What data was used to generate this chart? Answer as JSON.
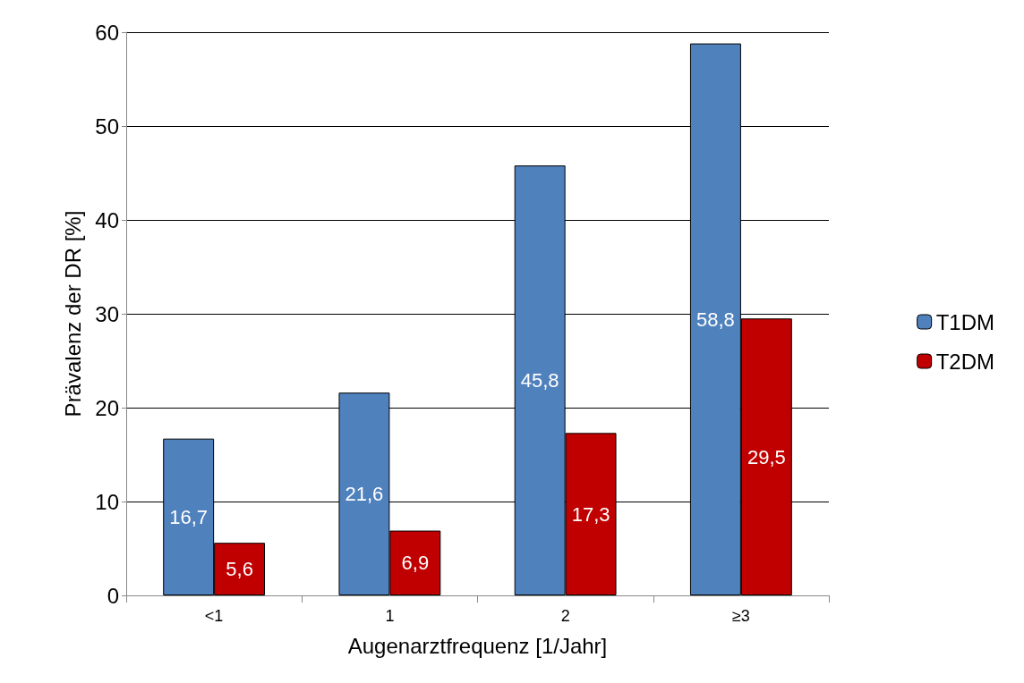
{
  "chart_data": {
    "type": "bar",
    "xlabel": "Augenarztfrequenz [1/Jahr]",
    "ylabel": "Prävalenz der DR [%]",
    "categories": [
      "<1",
      "1",
      "2",
      "≥3"
    ],
    "series": [
      {
        "name": "T1DM",
        "color": "#4f81bd",
        "values": [
          16.7,
          21.6,
          45.8,
          58.8
        ],
        "value_labels": [
          "16,7",
          "21,6",
          "45,8",
          "58,8"
        ]
      },
      {
        "name": "T2DM",
        "color": "#c00000",
        "values": [
          5.6,
          6.9,
          17.3,
          29.5
        ],
        "value_labels": [
          "5,6",
          "6,9",
          "17,3",
          "29,5"
        ]
      }
    ],
    "ylim": [
      0,
      60
    ],
    "yticks": [
      0,
      10,
      20,
      30,
      40,
      50,
      60
    ],
    "grid": "y",
    "legend": "right"
  }
}
